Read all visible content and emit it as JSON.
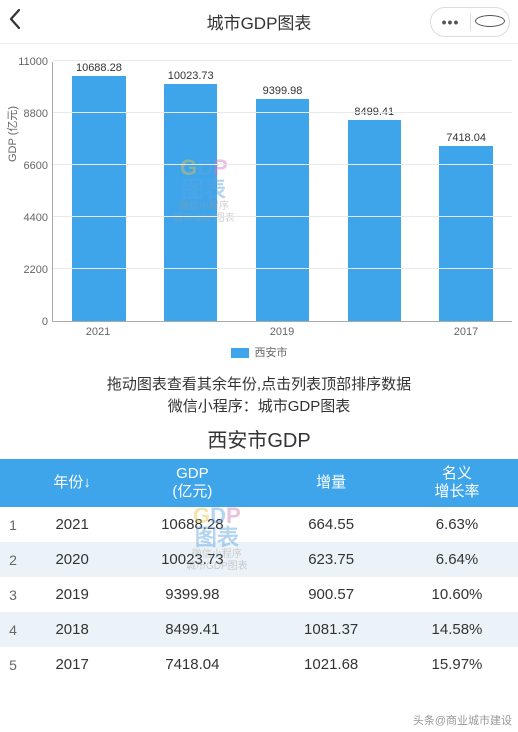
{
  "header": {
    "title": "城市GDP图表"
  },
  "chart": {
    "type": "bar",
    "ylabel": "GDP (亿元)",
    "ylim": [
      0,
      11000
    ],
    "yticks": [
      0,
      2200,
      4400,
      6600,
      8800,
      11000
    ],
    "categories": [
      "2021",
      "",
      "2019",
      "",
      "2017"
    ],
    "values": [
      10688.28,
      10023.73,
      9399.98,
      8499.41,
      7418.04
    ],
    "value_labels": [
      "10688.28",
      "10023.73",
      "9399.98",
      "8499.41",
      "7418.04"
    ],
    "bar_color": "#3ea5eb",
    "grid_color": "#e8e8e8",
    "axis_color": "#aaaaaa",
    "background_color": "#ffffff",
    "legend_label": "西安市",
    "label_fontsize": 11
  },
  "watermark": {
    "line1_parts": [
      "G",
      "D",
      "P"
    ],
    "line2": "图表",
    "line3": "微信小程序",
    "line4": "城市GDP图表"
  },
  "caption": {
    "line1": "拖动图表查看其余年份,点击列表顶部排序数据",
    "line2": "微信小程序：城市GDP图表"
  },
  "table": {
    "title": "西安市GDP",
    "header_bg": "#3ea5eb",
    "alt_row_bg": "#ecf3f8",
    "columns": [
      "年份↓",
      "GDP\n(亿元)",
      "增量",
      "名义\n增长率"
    ],
    "rows": [
      [
        "1",
        "2021",
        "10688.28",
        "664.55",
        "6.63%"
      ],
      [
        "2",
        "2020",
        "10023.73",
        "623.75",
        "6.64%"
      ],
      [
        "3",
        "2019",
        "9399.98",
        "900.57",
        "10.60%"
      ],
      [
        "4",
        "2018",
        "8499.41",
        "1081.37",
        "14.58%"
      ],
      [
        "5",
        "2017",
        "7418.04",
        "1021.68",
        "15.97%"
      ]
    ]
  },
  "footer": {
    "source": "头条@商业城市建设"
  }
}
